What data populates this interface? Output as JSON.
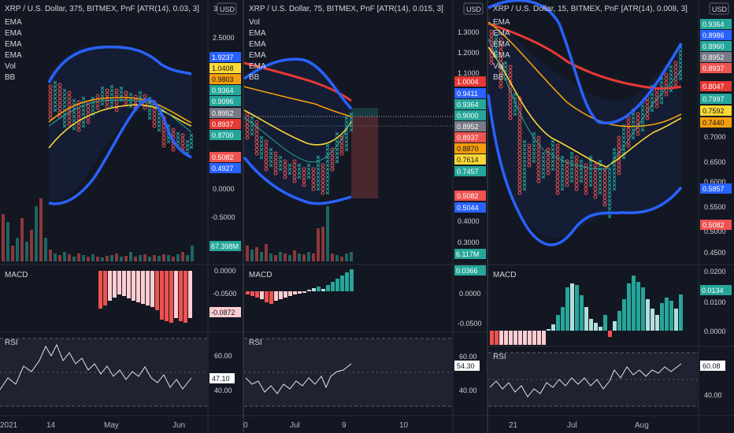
{
  "colors": {
    "bg": "#131722",
    "panel_sep": "#2a2e39",
    "up": "#26a69a",
    "down": "#ef5350",
    "blue": "#2962ff",
    "bb_blue": "#2962ff",
    "ema_red": "#e53935",
    "ema_orange": "#f59e0b",
    "ema_yellow": "#fdd835",
    "ema_teal": "#26a69a",
    "rsi_line": "#e0e3eb",
    "rsi_band": "#1e2231",
    "macd_up": "#26a69a",
    "macd_up_light": "#b2dfdb",
    "macd_down": "#ef5350",
    "macd_down_light": "#ffcdd2"
  },
  "panels": [
    {
      "id": "p1",
      "title": "XRP / U.S. Dollar, 375, BITMEX, PnF [ATR(14), 0.03, 3]",
      "currency": "USD",
      "legend": [
        "EMA",
        "EMA",
        "EMA",
        "EMA",
        "Vol",
        "BB"
      ],
      "price_ticks": [
        "3",
        "2.5000",
        "2.0000",
        "1.5000",
        "1.0000",
        "0.5000",
        "0.0000",
        "-0.5000"
      ],
      "price_tags": [
        {
          "text": "1.9237",
          "color": "#2962ff"
        },
        {
          "text": "1.0408",
          "color": "#fdd835"
        },
        {
          "text": "0.9803",
          "color": "#f59e0b"
        },
        {
          "text": "0.9364",
          "color": "#26a69a"
        },
        {
          "text": "0.9096",
          "color": "#26a69a"
        },
        {
          "text": "0.8952",
          "color": "#787b86"
        },
        {
          "text": "0.8937",
          "color": "#e53935"
        },
        {
          "text": "0.8700",
          "color": "#26a69a"
        },
        {
          "text": "0.5082",
          "color": "#ef5350"
        },
        {
          "text": "0.4927",
          "color": "#2962ff"
        }
      ],
      "volume_tag": "67.398M",
      "macd_label": "MACD",
      "macd_ticks": [
        "0.0000",
        "-0.0500"
      ],
      "macd_tag": "-0.0872",
      "rsi_label": "RSI",
      "rsi_ticks": [
        "60.00",
        "40.00"
      ],
      "rsi_tag": "47.10",
      "time_labels": [
        "2021",
        "14",
        "May",
        "Jun"
      ]
    },
    {
      "id": "p2",
      "title": "XRP / U.S. Dollar, 75, BITMEX, PnF [ATR(14), 0.015, 3]",
      "currency": "USD",
      "legend": [
        "Vol",
        "EMA",
        "EMA",
        "EMA",
        "EMA",
        "BB"
      ],
      "price_ticks": [
        "1.3000",
        "1.2000",
        "1.1000",
        "1.0000",
        "0.4000",
        "0.3000"
      ],
      "price_tags": [
        {
          "text": "1.0004",
          "color": "#e53935"
        },
        {
          "text": "0.9411",
          "color": "#2962ff"
        },
        {
          "text": "0.9364",
          "color": "#26a69a"
        },
        {
          "text": "0.9000",
          "color": "#26a69a"
        },
        {
          "text": "0.8952",
          "color": "#787b86"
        },
        {
          "text": "0.8937",
          "color": "#ef5350"
        },
        {
          "text": "0.8870",
          "color": "#f59e0b"
        },
        {
          "text": "0.7614",
          "color": "#fdd835"
        },
        {
          "text": "0.7457",
          "color": "#26a69a"
        },
        {
          "text": "0.5082",
          "color": "#ef5350"
        },
        {
          "text": "0.5044",
          "color": "#2962ff"
        }
      ],
      "volume_tag": "6.117M",
      "macd_label": "MACD",
      "macd_ticks": [
        "0.0000",
        "-0.0500"
      ],
      "macd_tag": "0.0366",
      "rsi_label": "RSI",
      "rsi_ticks": [
        "60.00",
        "40.00"
      ],
      "rsi_tag": "54.30",
      "time_labels": [
        "0",
        "Jul",
        "9",
        "10"
      ]
    },
    {
      "id": "p3",
      "title": "XRP / U.S. Dollar, 15, BITMEX, PnF [ATR(14), 0.008, 3]",
      "currency": "USD",
      "legend": [
        "EMA",
        "EMA",
        "EMA",
        "EMA",
        "Vol",
        "BB"
      ],
      "price_ticks": [
        "0.7000",
        "0.6500",
        "0.6000",
        "0.5500",
        "0.5000",
        "0.4500"
      ],
      "price_tags": [
        {
          "text": "0.9364",
          "color": "#26a69a"
        },
        {
          "text": "0.8986",
          "color": "#2962ff"
        },
        {
          "text": "0.8960",
          "color": "#26a69a"
        },
        {
          "text": "0.8952",
          "color": "#787b86"
        },
        {
          "text": "0.8937",
          "color": "#ef5350"
        },
        {
          "text": "0.8047",
          "color": "#e53935"
        },
        {
          "text": "0.7997",
          "color": "#26a69a"
        },
        {
          "text": "0.7592",
          "color": "#fdd835"
        },
        {
          "text": "0.7440",
          "color": "#f59e0b"
        },
        {
          "text": "0.5857",
          "color": "#2962ff"
        },
        {
          "text": "0.5082",
          "color": "#ef5350"
        }
      ],
      "macd_label": "MACD",
      "macd_ticks": [
        "0.0200",
        "0.0100",
        "0.0000"
      ],
      "macd_tag": "0.0134",
      "rsi_label": "RSI",
      "rsi_ticks": [
        "40.00"
      ],
      "rsi_tag": "60.08",
      "time_labels": [
        "21",
        "Jul",
        "Aug"
      ]
    }
  ]
}
